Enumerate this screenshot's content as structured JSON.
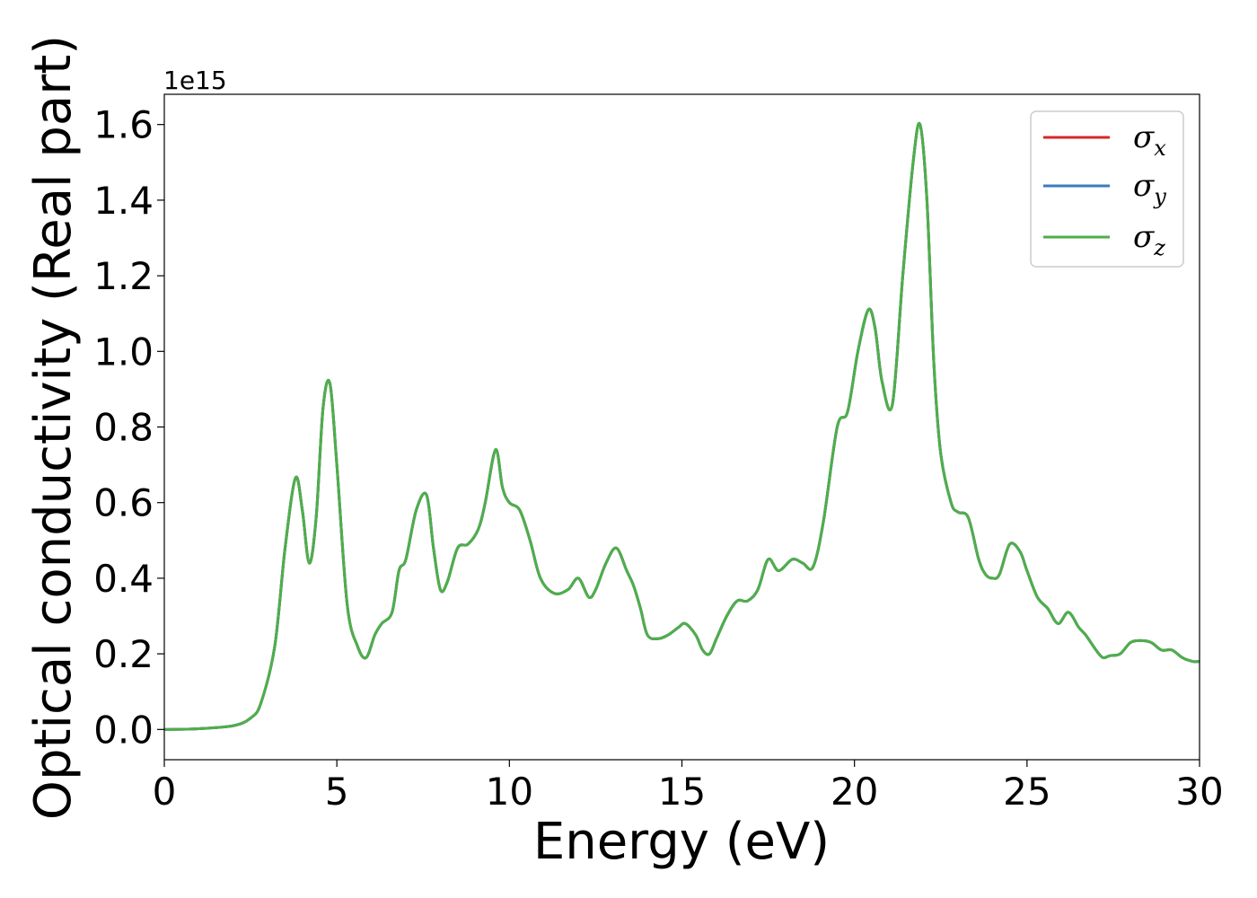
{
  "chart_data": {
    "type": "line",
    "xlabel": "Energy (eV)",
    "ylabel": "Optical conductivity (Real part)",
    "y_offset_label": "1e15",
    "y_scale": 1000000000000000.0,
    "xlim": [
      0,
      30
    ],
    "ylim": [
      -0.08,
      1.68
    ],
    "x_ticks": [
      0,
      5,
      10,
      15,
      20,
      25,
      30
    ],
    "y_ticks": [
      0.0,
      0.2,
      0.4,
      0.6,
      0.8,
      1.0,
      1.2,
      1.4,
      1.6
    ],
    "x_tick_labels": [
      "0",
      "5",
      "10",
      "15",
      "20",
      "25",
      "30"
    ],
    "y_tick_labels": [
      "0.0",
      "0.2",
      "0.4",
      "0.6",
      "0.8",
      "1.0",
      "1.2",
      "1.4",
      "1.6"
    ],
    "grid": false,
    "legend_position": "top-right",
    "series": [
      {
        "name": "σ",
        "subscript": "x",
        "color": "#d62728"
      },
      {
        "name": "σ",
        "subscript": "y",
        "color": "#3a7bbf"
      },
      {
        "name": "σ",
        "subscript": "z",
        "color": "#4daf4a"
      }
    ],
    "x": [
      0,
      1,
      2,
      2.5,
      2.8,
      3.2,
      3.5,
      3.8,
      4.0,
      4.2,
      4.4,
      4.6,
      4.8,
      5.0,
      5.3,
      5.6,
      5.85,
      6.1,
      6.3,
      6.6,
      6.8,
      7.0,
      7.3,
      7.6,
      7.8,
      8.0,
      8.2,
      8.5,
      8.8,
      9.1,
      9.3,
      9.6,
      9.8,
      10.0,
      10.3,
      10.6,
      10.9,
      11.3,
      11.7,
      12.0,
      12.3,
      12.5,
      12.8,
      13.1,
      13.4,
      13.6,
      13.8,
      14.0,
      14.3,
      14.6,
      14.9,
      15.1,
      15.4,
      15.6,
      15.8,
      16.0,
      16.3,
      16.6,
      16.9,
      17.2,
      17.5,
      17.8,
      18.2,
      18.5,
      18.8,
      19.1,
      19.5,
      19.8,
      20.1,
      20.4,
      20.6,
      20.8,
      21.1,
      21.4,
      21.7,
      21.9,
      22.1,
      22.3,
      22.5,
      22.8,
      23.0,
      23.3,
      23.6,
      23.8,
      24.0,
      24.2,
      24.5,
      24.8,
      25.0,
      25.3,
      25.6,
      25.9,
      26.2,
      26.5,
      26.7,
      27.0,
      27.2,
      27.4,
      27.7,
      28.0,
      28.3,
      28.6,
      28.9,
      29.2,
      29.5,
      29.8,
      30.0
    ],
    "y": [
      0.0,
      0.002,
      0.01,
      0.03,
      0.07,
      0.22,
      0.48,
      0.665,
      0.58,
      0.44,
      0.56,
      0.85,
      0.915,
      0.7,
      0.33,
      0.22,
      0.19,
      0.25,
      0.28,
      0.31,
      0.42,
      0.45,
      0.58,
      0.62,
      0.48,
      0.37,
      0.39,
      0.48,
      0.49,
      0.53,
      0.6,
      0.74,
      0.64,
      0.6,
      0.58,
      0.5,
      0.4,
      0.36,
      0.37,
      0.4,
      0.35,
      0.37,
      0.44,
      0.48,
      0.42,
      0.38,
      0.32,
      0.25,
      0.24,
      0.25,
      0.27,
      0.28,
      0.25,
      0.21,
      0.2,
      0.24,
      0.3,
      0.34,
      0.34,
      0.37,
      0.45,
      0.42,
      0.45,
      0.44,
      0.43,
      0.55,
      0.8,
      0.84,
      1.0,
      1.11,
      1.06,
      0.92,
      0.86,
      1.2,
      1.5,
      1.6,
      1.4,
      0.97,
      0.73,
      0.6,
      0.575,
      0.56,
      0.45,
      0.41,
      0.4,
      0.41,
      0.49,
      0.47,
      0.42,
      0.35,
      0.32,
      0.28,
      0.31,
      0.27,
      0.25,
      0.21,
      0.19,
      0.195,
      0.2,
      0.23,
      0.235,
      0.23,
      0.21,
      0.21,
      0.19,
      0.18,
      0.18
    ]
  }
}
